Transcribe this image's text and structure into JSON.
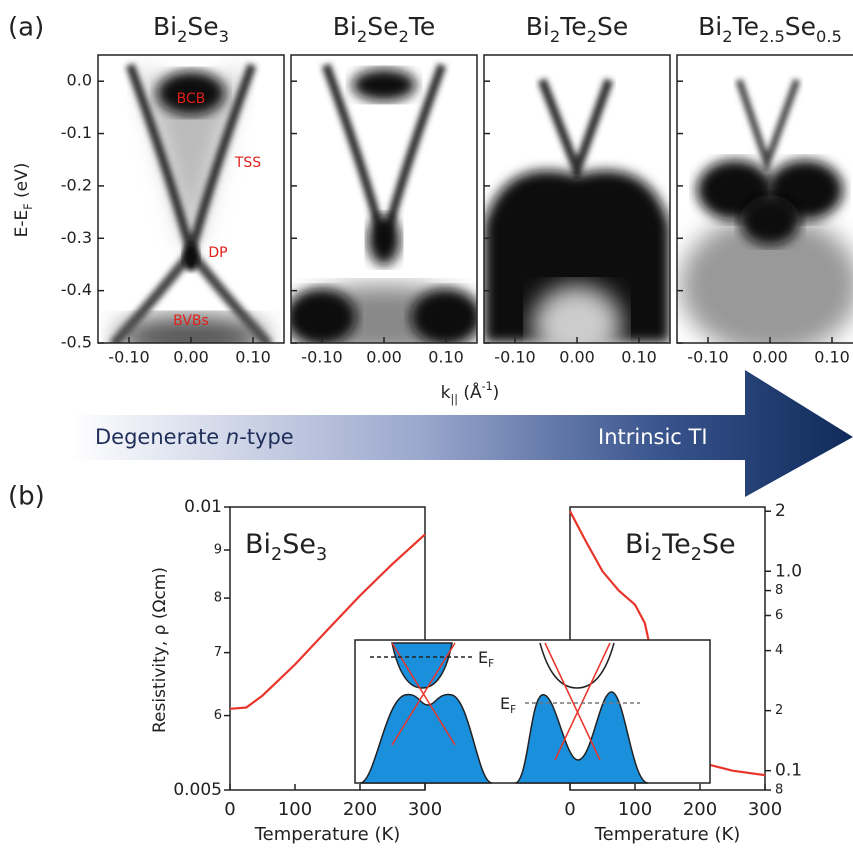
{
  "panel_a": {
    "label": "(a)",
    "y_axis_label": [
      {
        "text": "E-E"
      },
      {
        "text": "F",
        "sub": true
      },
      {
        "text": " (eV)"
      }
    ],
    "x_axis_label": [
      {
        "text": "k"
      },
      {
        "text": "||",
        "sub": true
      },
      {
        "text": " (Å"
      },
      {
        "text": "-1",
        "sup": true
      },
      {
        "text": ")"
      }
    ],
    "xlim": [
      -0.15,
      0.15
    ],
    "xticks": [
      {
        "value": -0.1,
        "label": "-0.10"
      },
      {
        "value": 0,
        "label": "0.00"
      },
      {
        "value": 0.1,
        "label": "0.10"
      }
    ],
    "ylim": [
      -0.5,
      0.05
    ],
    "yticks": [
      {
        "value": 0,
        "label": "0.0"
      },
      {
        "value": -0.1,
        "label": "-0.1"
      },
      {
        "value": -0.2,
        "label": "-0.2"
      },
      {
        "value": -0.3,
        "label": "-0.3"
      },
      {
        "value": -0.4,
        "label": "-0.4"
      },
      {
        "value": -0.5,
        "label": "-0.5"
      }
    ],
    "panels": [
      {
        "title": [
          {
            "text": "Bi"
          },
          {
            "text": "2",
            "sub": true
          },
          {
            "text": "Se"
          },
          {
            "text": "3",
            "sub": true
          }
        ],
        "annotations": [
          "BCB",
          "TSS",
          "DP",
          "BVBs"
        ]
      },
      {
        "title": [
          {
            "text": "Bi"
          },
          {
            "text": "2",
            "sub": true
          },
          {
            "text": "Se"
          },
          {
            "text": "2",
            "sub": true
          },
          {
            "text": "Te"
          }
        ]
      },
      {
        "title": [
          {
            "text": "Bi"
          },
          {
            "text": "2",
            "sub": true
          },
          {
            "text": "Te"
          },
          {
            "text": "2",
            "sub": true
          },
          {
            "text": "Se"
          }
        ]
      },
      {
        "title": [
          {
            "text": "Bi"
          },
          {
            "text": "2",
            "sub": true
          },
          {
            "text": "Te"
          },
          {
            "text": "2.5",
            "sub": true
          },
          {
            "text": "Se"
          },
          {
            "text": "0.5",
            "sub": true
          }
        ]
      }
    ]
  },
  "arrow": {
    "left": [
      {
        "text": "Degenerate "
      },
      {
        "text": "n",
        "italic": true
      },
      {
        "text": "-type"
      }
    ],
    "right": [
      {
        "text": "Intrinsic TI"
      }
    ]
  },
  "panel_b": {
    "label": "(b)",
    "y_axis_label": [
      {
        "text": "Resistivity, ρ (Ωcm)"
      }
    ],
    "charts": [
      {
        "type": "line",
        "title": [
          {
            "text": "Bi"
          },
          {
            "text": "2",
            "sub": true
          },
          {
            "text": "Se"
          },
          {
            "text": "3",
            "sub": true
          }
        ],
        "x_axis_label": [
          {
            "text": "Temperature (K)"
          }
        ],
        "x": [
          0,
          25,
          50,
          100,
          150,
          200,
          250,
          300
        ],
        "values": [
          0.0061,
          0.00612,
          0.0063,
          0.0068,
          0.0074,
          0.00805,
          0.0087,
          0.00935
        ],
        "color": "#e8352b",
        "log_y": true,
        "y_axis_side": "left",
        "xlim": [
          0,
          300
        ],
        "xticks": [
          0,
          100,
          200,
          300
        ],
        "ylim": [
          0.005,
          0.01
        ],
        "yticks": [
          0.01,
          {
            "value": 0.009,
            "label": "9"
          },
          {
            "value": 0.008,
            "label": "8"
          },
          {
            "value": 0.007,
            "label": "7"
          },
          {
            "value": 0.006,
            "label": "6"
          },
          0.005
        ]
      },
      {
        "type": "line",
        "title": [
          {
            "text": "Bi"
          },
          {
            "text": "2",
            "sub": true
          },
          {
            "text": "Te"
          },
          {
            "text": "2",
            "sub": true
          },
          {
            "text": "Se"
          }
        ],
        "x_axis_label": [
          {
            "text": "Temperature (K)"
          }
        ],
        "x": [
          0,
          25,
          50,
          75,
          100,
          115,
          130,
          150,
          175,
          200,
          250,
          300
        ],
        "values": [
          2.0,
          1.4,
          1.0,
          0.8,
          0.68,
          0.55,
          0.33,
          0.18,
          0.13,
          0.11,
          0.1,
          0.095
        ],
        "color": "#e8352b",
        "log_y": true,
        "y_axis_side": "right",
        "xlim": [
          0,
          300
        ],
        "xticks": [
          0,
          100,
          200,
          300
        ],
        "ylim": [
          0.08,
          2.1
        ],
        "yticks": [
          2,
          {
            "value": 1,
            "label": "1.0"
          },
          {
            "value": 0.8,
            "label": "8"
          },
          {
            "value": 0.6,
            "label": "6"
          },
          {
            "value": 0.4,
            "label": "4"
          },
          {
            "value": 0.2,
            "label": "2"
          },
          0.1,
          {
            "value": 0.08,
            "label": "8"
          }
        ]
      }
    ],
    "inset": {
      "labels": [
        [
          {
            "text": "E"
          },
          {
            "text": "F",
            "sub": true
          }
        ],
        [
          {
            "text": "E"
          },
          {
            "text": "F",
            "sub": true
          }
        ]
      ]
    }
  }
}
